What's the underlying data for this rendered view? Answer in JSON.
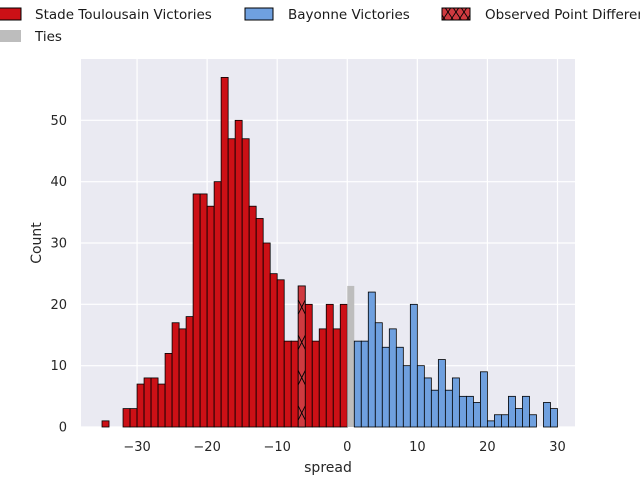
{
  "chart_data": {
    "type": "bar",
    "subtype": "histogram",
    "xlabel": "spread",
    "ylabel": "Count",
    "xlim": [
      -38,
      32.5
    ],
    "ylim": [
      0,
      60
    ],
    "xticks": [
      -30,
      -20,
      -10,
      0,
      10,
      20,
      30
    ],
    "xtick_labels": [
      "−30",
      "−20",
      "−10",
      "0",
      "10",
      "20",
      "30"
    ],
    "yticks": [
      0,
      10,
      20,
      30,
      40,
      50
    ],
    "ytick_labels": [
      "0",
      "10",
      "20",
      "30",
      "40",
      "50"
    ],
    "grid": true,
    "bin_width": 1,
    "colors": {
      "stade": "#cc1016",
      "bayonne": "#6fa0df",
      "ties": "#bdbdbd",
      "observed": "#cf3a40",
      "plot_bg": "#eaeaf2",
      "grid": "#ffffff"
    },
    "legend": {
      "placement": "top",
      "entries": [
        {
          "label": "Stade Toulousain Victories",
          "color": "#cc1016"
        },
        {
          "label": "Bayonne Victories",
          "color": "#6fa0df"
        },
        {
          "label": "Observed Point Difference",
          "color": "#cf3a40",
          "hatch": "x"
        },
        {
          "label": "Ties",
          "color": "#bdbdbd"
        }
      ]
    },
    "series": [
      {
        "key": "stade",
        "name": "Stade Toulousain Victories",
        "bins": [
          {
            "x": -35,
            "count": 1
          },
          {
            "x": -32,
            "count": 3
          },
          {
            "x": -31,
            "count": 3
          },
          {
            "x": -30,
            "count": 7
          },
          {
            "x": -29,
            "count": 8
          },
          {
            "x": -28,
            "count": 8
          },
          {
            "x": -27,
            "count": 7
          },
          {
            "x": -26,
            "count": 12
          },
          {
            "x": -25,
            "count": 17
          },
          {
            "x": -24,
            "count": 16
          },
          {
            "x": -23,
            "count": 18
          },
          {
            "x": -22,
            "count": 38
          },
          {
            "x": -21,
            "count": 38
          },
          {
            "x": -20,
            "count": 36
          },
          {
            "x": -19,
            "count": 40
          },
          {
            "x": -18,
            "count": 57
          },
          {
            "x": -17,
            "count": 47
          },
          {
            "x": -16,
            "count": 50
          },
          {
            "x": -15,
            "count": 47
          },
          {
            "x": -14,
            "count": 36
          },
          {
            "x": -13,
            "count": 34
          },
          {
            "x": -12,
            "count": 30
          },
          {
            "x": -11,
            "count": 25
          },
          {
            "x": -10,
            "count": 24
          },
          {
            "x": -9,
            "count": 14
          },
          {
            "x": -8,
            "count": 14
          },
          {
            "x": -7,
            "count": 23
          },
          {
            "x": -6,
            "count": 20
          },
          {
            "x": -5,
            "count": 14
          },
          {
            "x": -4,
            "count": 16
          },
          {
            "x": -3,
            "count": 20
          },
          {
            "x": -2,
            "count": 16
          },
          {
            "x": -1,
            "count": 20
          }
        ]
      },
      {
        "key": "ties",
        "name": "Ties",
        "bins": [
          {
            "x": 0,
            "count": 23
          }
        ]
      },
      {
        "key": "bayonne",
        "name": "Bayonne Victories",
        "bins": [
          {
            "x": 1,
            "count": 14
          },
          {
            "x": 2,
            "count": 14
          },
          {
            "x": 3,
            "count": 22
          },
          {
            "x": 4,
            "count": 17
          },
          {
            "x": 5,
            "count": 13
          },
          {
            "x": 6,
            "count": 16
          },
          {
            "x": 7,
            "count": 13
          },
          {
            "x": 8,
            "count": 10
          },
          {
            "x": 9,
            "count": 20
          },
          {
            "x": 10,
            "count": 10
          },
          {
            "x": 11,
            "count": 8
          },
          {
            "x": 12,
            "count": 6
          },
          {
            "x": 13,
            "count": 11
          },
          {
            "x": 14,
            "count": 6
          },
          {
            "x": 15,
            "count": 8
          },
          {
            "x": 16,
            "count": 5
          },
          {
            "x": 17,
            "count": 5
          },
          {
            "x": 18,
            "count": 4
          },
          {
            "x": 19,
            "count": 9
          },
          {
            "x": 20,
            "count": 1
          },
          {
            "x": 21,
            "count": 2
          },
          {
            "x": 22,
            "count": 2
          },
          {
            "x": 23,
            "count": 5
          },
          {
            "x": 24,
            "count": 3
          },
          {
            "x": 25,
            "count": 5
          },
          {
            "x": 26,
            "count": 2
          },
          {
            "x": 28,
            "count": 4
          },
          {
            "x": 29,
            "count": 3
          }
        ]
      }
    ],
    "observed": {
      "name": "Observed Point Difference",
      "x": -7,
      "count": 23
    }
  }
}
